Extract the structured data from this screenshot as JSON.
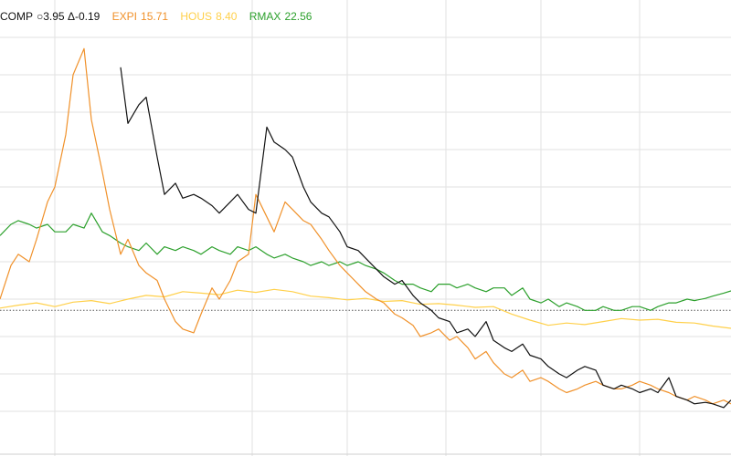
{
  "chart_data": {
    "type": "line",
    "grid": true,
    "legend_placement": "top-left",
    "title": "",
    "xlabel": "",
    "ylabel": "",
    "x_range": [
      0,
      200
    ],
    "y_range": [
      0,
      60
    ],
    "reference_line": {
      "y": 18.5,
      "style": "dotted",
      "color": "#555555"
    },
    "legend": [
      {
        "symbol": "COMP",
        "value": "○3.95 Δ-0.19",
        "color": "#111111"
      },
      {
        "symbol": "EXPI",
        "value": "15.71",
        "color": "#f0912a"
      },
      {
        "symbol": "HOUS",
        "value": "8.40",
        "color": "#ffd04a"
      },
      {
        "symbol": "RMAX",
        "value": "22.56",
        "color": "#2ca02c"
      }
    ],
    "series": [
      {
        "symbol": "COMP",
        "color": "#111111",
        "x": [
          33,
          35,
          38,
          40,
          43,
          45,
          48,
          50,
          53,
          55,
          58,
          60,
          63,
          65,
          68,
          70,
          73,
          75,
          78,
          80,
          83,
          85,
          88,
          90,
          93,
          95,
          98,
          100,
          103,
          105,
          108,
          110,
          113,
          115,
          118,
          120,
          123,
          125,
          128,
          130,
          133,
          135,
          138,
          140,
          143,
          145,
          148,
          150,
          153,
          155,
          158,
          160,
          163,
          165,
          168,
          170,
          173,
          175,
          178,
          180,
          183,
          185,
          188,
          190,
          193,
          195,
          198,
          200
        ],
        "values": [
          51.0,
          43.5,
          46.0,
          47.0,
          39.0,
          34.0,
          35.5,
          33.5,
          34.0,
          33.5,
          32.5,
          31.5,
          33.0,
          34.0,
          32.0,
          31.5,
          43.0,
          41.0,
          40.0,
          39.0,
          35.0,
          33.0,
          31.5,
          31.0,
          29.0,
          27.0,
          26.5,
          25.5,
          24.0,
          23.0,
          22.0,
          22.5,
          20.5,
          19.5,
          18.5,
          17.5,
          17.0,
          15.5,
          16.0,
          15.0,
          17.0,
          14.5,
          13.5,
          13.0,
          14.0,
          12.5,
          12.0,
          11.0,
          10.0,
          9.5,
          10.5,
          11.0,
          10.5,
          8.5,
          8.0,
          8.5,
          8.0,
          7.5,
          8.0,
          7.5,
          9.5,
          7.0,
          6.5,
          6.0,
          6.2,
          6.0,
          5.5,
          6.5
        ]
      },
      {
        "symbol": "EXPI",
        "color": "#f0912a",
        "x": [
          0,
          3,
          5,
          8,
          10,
          13,
          15,
          18,
          20,
          23,
          25,
          28,
          30,
          33,
          35,
          38,
          40,
          43,
          45,
          48,
          50,
          53,
          55,
          58,
          60,
          63,
          65,
          68,
          70,
          73,
          75,
          78,
          80,
          83,
          85,
          88,
          90,
          93,
          95,
          98,
          100,
          103,
          105,
          108,
          110,
          113,
          115,
          118,
          120,
          123,
          125,
          128,
          130,
          133,
          135,
          138,
          140,
          143,
          145,
          148,
          150,
          153,
          155,
          158,
          160,
          163,
          165,
          168,
          170,
          173,
          175,
          178,
          180,
          183,
          185,
          188,
          190,
          193,
          195,
          198,
          200
        ],
        "values": [
          20.0,
          24.5,
          26.0,
          25.0,
          28.0,
          33.0,
          35.0,
          42.0,
          50.0,
          53.5,
          44.0,
          37.0,
          32.0,
          26.0,
          28.0,
          24.5,
          23.5,
          22.5,
          20.0,
          17.0,
          16.0,
          15.5,
          18.0,
          21.5,
          20.0,
          22.5,
          25.0,
          26.0,
          34.0,
          31.0,
          29.0,
          33.0,
          32.0,
          30.5,
          30.0,
          28.0,
          26.5,
          24.5,
          23.5,
          22.0,
          21.0,
          20.0,
          19.5,
          18.0,
          17.5,
          16.5,
          15.0,
          15.5,
          16.0,
          14.5,
          15.0,
          13.5,
          12.0,
          13.0,
          11.5,
          10.0,
          9.5,
          10.5,
          9.0,
          9.5,
          9.0,
          8.0,
          7.5,
          8.0,
          8.5,
          9.0,
          8.5,
          8.0,
          8.0,
          8.5,
          9.0,
          8.5,
          8.0,
          7.5,
          7.0,
          6.5,
          7.0,
          6.5,
          6.0,
          6.5,
          6.0
        ]
      },
      {
        "symbol": "HOUS",
        "color": "#ffd04a",
        "x": [
          0,
          5,
          10,
          15,
          20,
          25,
          30,
          35,
          40,
          45,
          50,
          55,
          60,
          65,
          70,
          75,
          80,
          85,
          90,
          95,
          100,
          105,
          110,
          115,
          120,
          125,
          130,
          135,
          140,
          145,
          150,
          155,
          160,
          165,
          170,
          175,
          180,
          185,
          190,
          195,
          200
        ],
        "values": [
          18.8,
          19.2,
          19.5,
          19.0,
          19.6,
          19.8,
          19.4,
          20.0,
          20.5,
          20.3,
          21.0,
          20.8,
          20.6,
          21.2,
          20.9,
          21.3,
          21.0,
          20.4,
          20.2,
          19.9,
          20.1,
          19.7,
          19.8,
          19.3,
          19.4,
          19.2,
          18.9,
          19.0,
          18.0,
          17.2,
          16.5,
          16.8,
          16.6,
          17.0,
          17.4,
          17.2,
          17.3,
          16.9,
          16.8,
          16.4,
          16.1
        ]
      },
      {
        "symbol": "RMAX",
        "color": "#2ca02c",
        "x": [
          0,
          3,
          5,
          8,
          10,
          13,
          15,
          18,
          20,
          23,
          25,
          28,
          30,
          33,
          35,
          38,
          40,
          43,
          45,
          48,
          50,
          53,
          55,
          58,
          60,
          63,
          65,
          68,
          70,
          73,
          75,
          78,
          80,
          83,
          85,
          88,
          90,
          93,
          95,
          98,
          100,
          103,
          105,
          108,
          110,
          113,
          115,
          118,
          120,
          123,
          125,
          128,
          130,
          133,
          135,
          138,
          140,
          143,
          145,
          148,
          150,
          153,
          155,
          158,
          160,
          163,
          165,
          168,
          170,
          173,
          175,
          178,
          180,
          183,
          185,
          188,
          190,
          193,
          195,
          198,
          200
        ],
        "values": [
          28.5,
          30.0,
          30.5,
          30.0,
          29.5,
          30.0,
          29.0,
          29.0,
          30.0,
          29.5,
          31.5,
          29.0,
          28.5,
          27.5,
          27.0,
          26.5,
          27.5,
          26.0,
          27.0,
          26.5,
          27.0,
          26.5,
          26.0,
          27.0,
          26.5,
          26.0,
          27.0,
          26.5,
          27.0,
          26.0,
          25.5,
          26.0,
          25.5,
          25.0,
          24.5,
          25.0,
          24.5,
          25.0,
          24.5,
          25.0,
          24.5,
          24.0,
          23.5,
          22.5,
          22.0,
          22.0,
          21.5,
          21.0,
          22.0,
          22.0,
          21.5,
          22.0,
          21.5,
          21.0,
          21.5,
          21.5,
          20.5,
          21.5,
          20.0,
          19.5,
          20.0,
          19.0,
          19.5,
          19.0,
          18.5,
          18.5,
          19.0,
          18.5,
          18.5,
          19.0,
          19.0,
          18.5,
          19.0,
          19.5,
          19.5,
          20.0,
          19.8,
          20.1,
          20.4,
          20.8,
          21.1
        ]
      }
    ]
  }
}
